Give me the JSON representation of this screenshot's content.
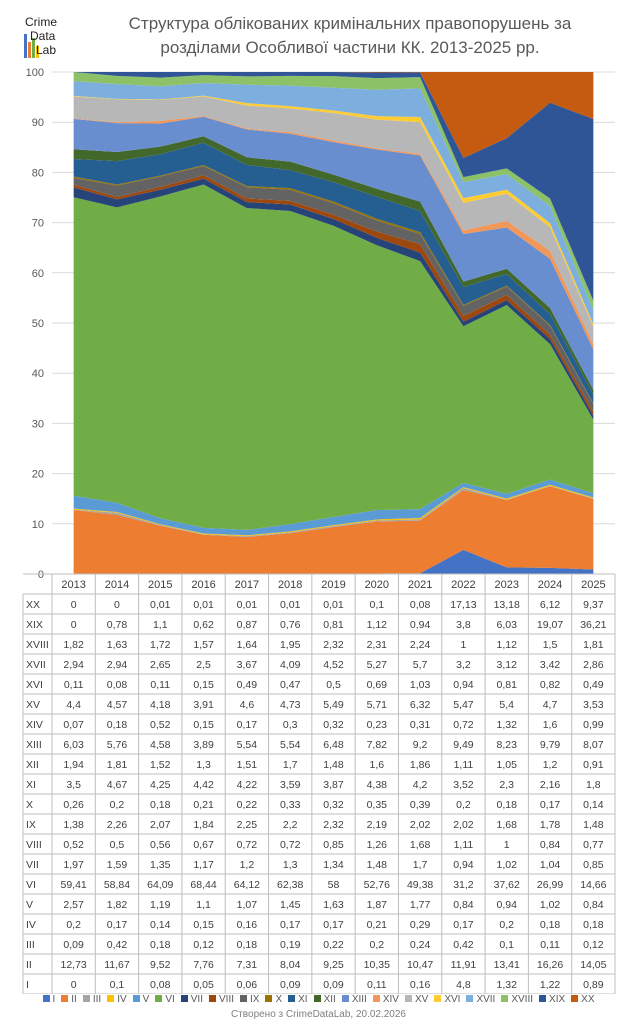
{
  "logo": {
    "text": "CrimeDataLab"
  },
  "title_lines": [
    "Структура облікованих кримінальних правопорушень за",
    "розділами Особливої частини КК. 2013-2025 рр."
  ],
  "footer": "Створено з CrimeDataLab, 20.02.2026",
  "chart_data": {
    "type": "area",
    "stacked": "percent",
    "ylim": [
      0,
      100
    ],
    "yticks": [
      0,
      10,
      20,
      30,
      40,
      50,
      60,
      70,
      80,
      90,
      100
    ],
    "grid": true,
    "legend_position": "bottom",
    "x": [
      "2013",
      "2014",
      "2015",
      "2016",
      "2017",
      "2018",
      "2019",
      "2020",
      "2021",
      "2022",
      "2023",
      "2024",
      "2025"
    ],
    "series": [
      {
        "name": "I",
        "color": "#4472C4",
        "values": [
          0,
          0.1,
          0.08,
          0.05,
          0.06,
          0.09,
          0.09,
          0.11,
          0.16,
          4.8,
          1.32,
          1.22,
          0.89
        ]
      },
      {
        "name": "II",
        "color": "#ED7D31",
        "values": [
          12.73,
          11.67,
          9.52,
          7.76,
          7.31,
          8.04,
          9.25,
          10.35,
          10.47,
          11.91,
          13.41,
          16.26,
          14.05
        ]
      },
      {
        "name": "III",
        "color": "#A5A5A5",
        "values": [
          0.09,
          0.42,
          0.18,
          0.12,
          0.18,
          0.19,
          0.22,
          0.2,
          0.24,
          0.42,
          0.1,
          0.11,
          0.12
        ]
      },
      {
        "name": "IV",
        "color": "#FFC000",
        "values": [
          0.2,
          0.17,
          0.14,
          0.15,
          0.16,
          0.17,
          0.17,
          0.21,
          0.29,
          0.17,
          0.2,
          0.18,
          0.18
        ]
      },
      {
        "name": "V",
        "color": "#5B9BD5",
        "values": [
          2.57,
          1.82,
          1.19,
          1.1,
          1.07,
          1.45,
          1.63,
          1.87,
          1.77,
          0.84,
          0.94,
          1.02,
          0.84
        ]
      },
      {
        "name": "VI",
        "color": "#70AD47",
        "values": [
          59.41,
          58.84,
          64.09,
          68.44,
          64.12,
          62.38,
          58,
          52.76,
          49.38,
          31.2,
          37.62,
          26.99,
          14.66
        ]
      },
      {
        "name": "VII",
        "color": "#264478",
        "values": [
          1.97,
          1.59,
          1.35,
          1.17,
          1.2,
          1.3,
          1.34,
          1.48,
          1.7,
          0.94,
          1.02,
          1.04,
          0.85
        ]
      },
      {
        "name": "VIII",
        "color": "#9E480E",
        "values": [
          0.52,
          0.5,
          0.56,
          0.67,
          0.72,
          0.72,
          0.85,
          1.26,
          1.68,
          1.11,
          1,
          0.84,
          0.77
        ]
      },
      {
        "name": "IX",
        "color": "#636363",
        "values": [
          1.38,
          2.26,
          2.07,
          1.84,
          2.25,
          2.2,
          2.32,
          2.19,
          2.02,
          2.02,
          1.68,
          1.78,
          1.48
        ]
      },
      {
        "name": "X",
        "color": "#997300",
        "values": [
          0.26,
          0.2,
          0.18,
          0.21,
          0.22,
          0.33,
          0.32,
          0.35,
          0.39,
          0.2,
          0.18,
          0.17,
          0.14
        ]
      },
      {
        "name": "XI",
        "color": "#255E91",
        "values": [
          3.5,
          4.67,
          4.25,
          4.42,
          4.22,
          3.59,
          3.87,
          4.38,
          4.2,
          3.52,
          2.3,
          2.16,
          1.8
        ]
      },
      {
        "name": "XII",
        "color": "#43682B",
        "values": [
          1.94,
          1.81,
          1.52,
          1.3,
          1.51,
          1.7,
          1.48,
          1.6,
          1.86,
          1.11,
          1.05,
          1.2,
          0.91
        ]
      },
      {
        "name": "XIII",
        "color": "#698ED0",
        "values": [
          6.03,
          5.76,
          4.58,
          3.89,
          5.54,
          5.54,
          6.48,
          7.82,
          9.2,
          9.49,
          8.23,
          9.79,
          8.07
        ]
      },
      {
        "name": "XIV",
        "color": "#F1975A",
        "values": [
          0.07,
          0.18,
          0.52,
          0.15,
          0.17,
          0.3,
          0.32,
          0.23,
          0.31,
          0.72,
          1.32,
          1.6,
          0.99
        ]
      },
      {
        "name": "XV",
        "color": "#B7B7B7",
        "values": [
          4.4,
          4.57,
          4.18,
          3.91,
          4.6,
          4.73,
          5.49,
          5.71,
          6.32,
          5.47,
          5.4,
          4.7,
          3.53
        ]
      },
      {
        "name": "XVI",
        "color": "#FFCD33",
        "values": [
          0.11,
          0.08,
          0.11,
          0.15,
          0.49,
          0.47,
          0.5,
          0.69,
          1.03,
          0.94,
          0.81,
          0.82,
          0.49
        ]
      },
      {
        "name": "XVII",
        "color": "#7CAFDD",
        "values": [
          2.94,
          2.94,
          2.65,
          2.5,
          3.67,
          4.09,
          4.52,
          5.27,
          5.7,
          3.2,
          3.12,
          3.42,
          2.86
        ]
      },
      {
        "name": "XVIII",
        "color": "#8CC168",
        "values": [
          1.82,
          1.63,
          1.72,
          1.57,
          1.64,
          1.95,
          2.32,
          2.31,
          2.24,
          1,
          1.12,
          1.5,
          1.81
        ]
      },
      {
        "name": "XIX",
        "color": "#2F5597",
        "values": [
          0,
          0.78,
          1.1,
          0.62,
          0.87,
          0.76,
          0.81,
          1.12,
          0.94,
          3.8,
          6.03,
          19.07,
          36.21
        ]
      },
      {
        "name": "XX",
        "color": "#C55A11",
        "values": [
          0,
          0,
          0.01,
          0.01,
          0.01,
          0.01,
          0.01,
          0.1,
          0.08,
          17.13,
          13.18,
          6.12,
          9.37
        ]
      }
    ]
  }
}
